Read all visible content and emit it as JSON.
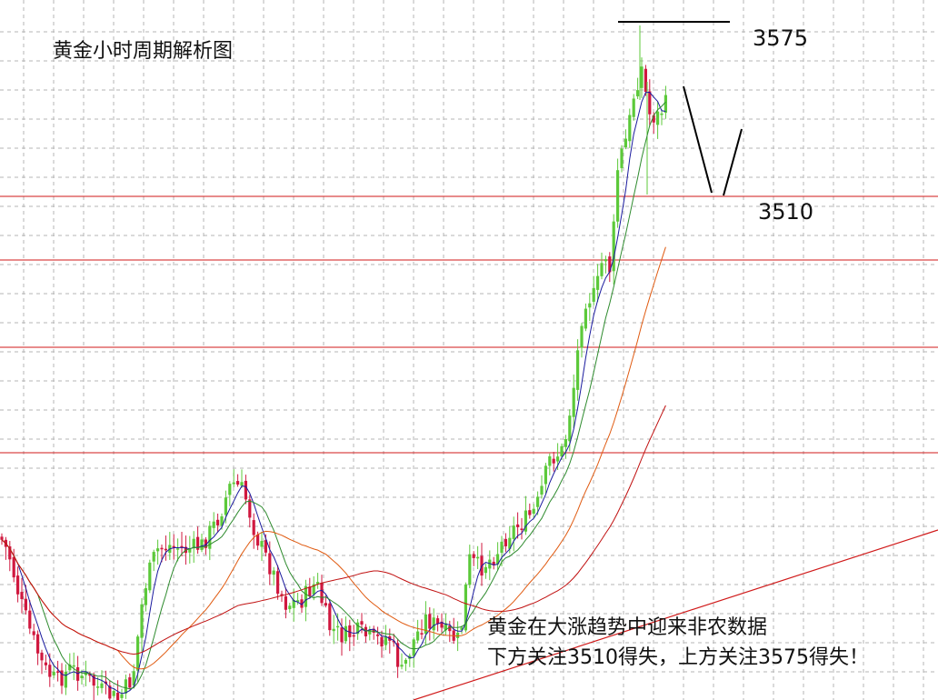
{
  "chart_data": {
    "type": "candlestick",
    "title": "黄金小时周期解析图",
    "annotations": {
      "level_high": "3575",
      "level_low": "3510",
      "note_line1": "黄金在大涨趋势中迎来非农数据",
      "note_line2": "下方关注3510得失，上方关注3575得失！"
    },
    "key_levels": [
      3575,
      3510
    ],
    "grid": true,
    "colors": {
      "bull": "#5cc93a",
      "bear": "#d0183f",
      "horizontal_lines": "#d01a1a",
      "grid": "#b4b4b4",
      "ma_fast": "#1a1a9e",
      "ma_mid": "#2e8b2e",
      "ma_slow": "#e05a10",
      "ma_long": "#c01010",
      "trendline": "#d01a1a"
    }
  }
}
